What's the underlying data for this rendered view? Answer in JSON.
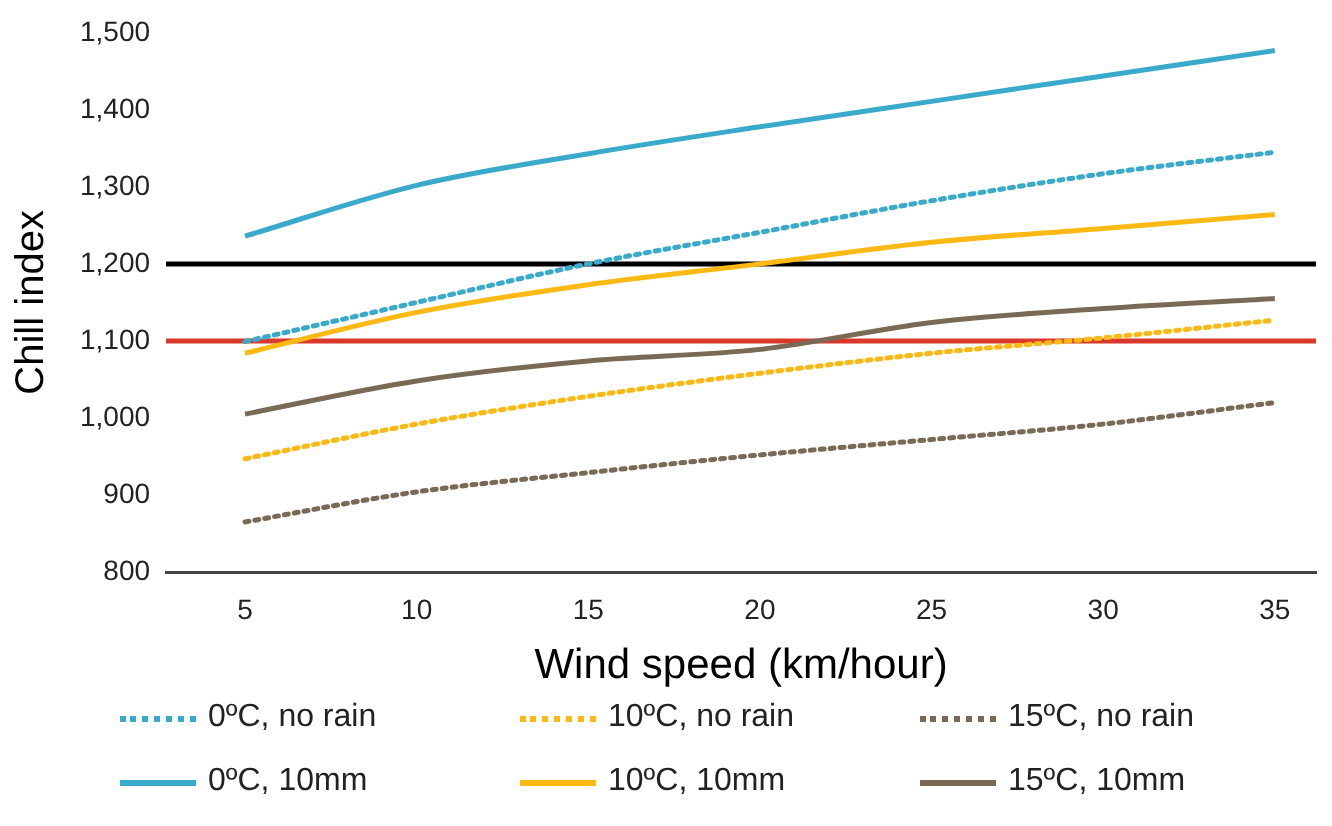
{
  "chart_data": {
    "type": "line",
    "xlabel": "Wind speed (km/hour)",
    "ylabel": "Chill index",
    "x": [
      5,
      10,
      15,
      20,
      25,
      30,
      35
    ],
    "xlim": [
      2.7,
      36.2
    ],
    "xticks": [
      5,
      10,
      15,
      20,
      25,
      30,
      35
    ],
    "ylim": [
      800,
      1500
    ],
    "yticks": [
      {
        "value": 800,
        "label": "800"
      },
      {
        "value": 900,
        "label": "900"
      },
      {
        "value": 1000,
        "label": "1,000"
      },
      {
        "value": 1100,
        "label": "1,100"
      },
      {
        "value": 1200,
        "label": "1,200"
      },
      {
        "value": 1300,
        "label": "1,300"
      },
      {
        "value": 1400,
        "label": "1,400"
      },
      {
        "value": 1500,
        "label": "1,500"
      }
    ],
    "grid": false,
    "legend": "bottom",
    "marker": "none",
    "series": [
      {
        "name": "0ºC, no rain",
        "color": "#3aaacc",
        "line_style": "dotted",
        "values": [
          1099,
          1150,
          1200,
          1241,
          1282,
          1317,
          1345
        ]
      },
      {
        "name": "10ºC, no rain",
        "color": "#fdb913",
        "line_style": "dotted",
        "values": [
          947,
          992,
          1028,
          1058,
          1084,
          1104,
          1127
        ]
      },
      {
        "name": "15ºC, no rain",
        "color": "#7a6a55",
        "line_style": "dotted",
        "values": [
          865,
          904,
          929,
          952,
          972,
          992,
          1020
        ]
      },
      {
        "name": "0ºC, 10mm",
        "color": "#3aaacc",
        "line_style": "solid",
        "values": [
          1236,
          1302,
          1343,
          1378,
          1411,
          1444,
          1477
        ]
      },
      {
        "name": "10ºC, 10mm",
        "color": "#fdb913",
        "line_style": "solid",
        "values": [
          1084,
          1137,
          1173,
          1200,
          1228,
          1246,
          1264
        ]
      },
      {
        "name": "15ºC, 10mm",
        "color": "#7a6a55",
        "line_style": "solid",
        "values": [
          1005,
          1048,
          1074,
          1089,
          1124,
          1142,
          1155
        ]
      }
    ],
    "ref_lines": [
      {
        "axis": "y",
        "value": 1200,
        "color": "#000000"
      },
      {
        "axis": "y",
        "value": 1100,
        "color": "#d9382a"
      }
    ]
  }
}
